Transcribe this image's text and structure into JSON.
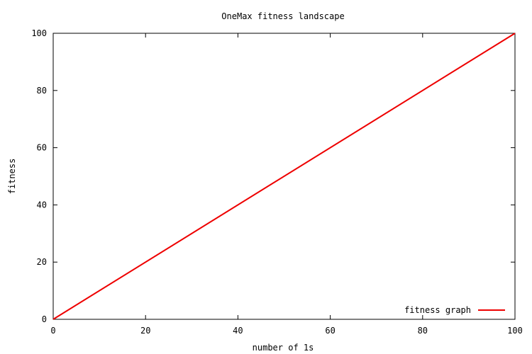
{
  "chart_data": {
    "type": "line",
    "title": "OneMax fitness landscape",
    "xlabel": "number of 1s",
    "ylabel": "fitness",
    "xlim": [
      0,
      100
    ],
    "ylim": [
      0,
      100
    ],
    "x_ticks": [
      0,
      20,
      40,
      60,
      80,
      100
    ],
    "y_ticks": [
      0,
      20,
      40,
      60,
      80,
      100
    ],
    "grid": false,
    "legend_position": "bottom-right",
    "series": [
      {
        "name": "fitness graph",
        "color": "#ee0000",
        "x": [
          0,
          100
        ],
        "y": [
          0,
          100
        ]
      }
    ]
  }
}
